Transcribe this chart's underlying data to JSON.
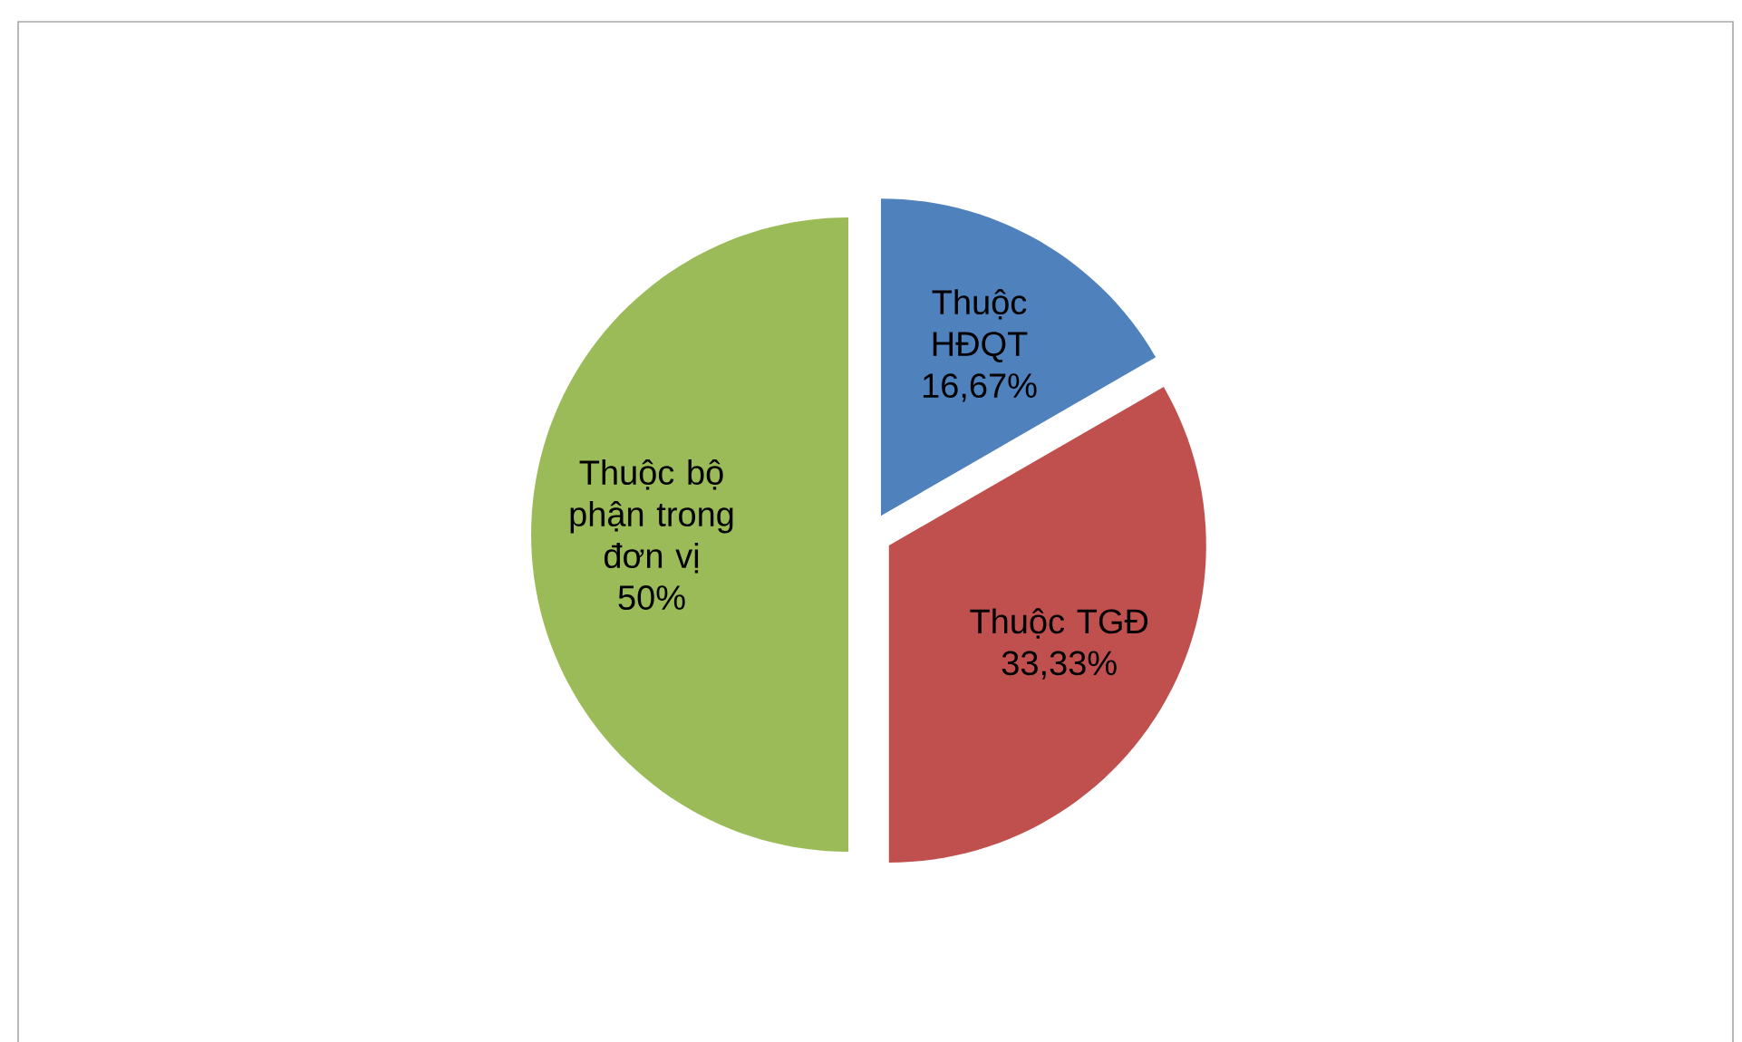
{
  "chart_data": {
    "type": "pie",
    "categories": [
      "Thuộc HĐQT",
      "Thuộc TGĐ",
      "Thuộc bộ phận trong đơn vị"
    ],
    "values": [
      16.67,
      33.33,
      50
    ],
    "value_labels": [
      "16,67%",
      "33,33%",
      "50%"
    ],
    "colors": [
      "#4f81bd",
      "#c0504d",
      "#9bbb59"
    ]
  }
}
